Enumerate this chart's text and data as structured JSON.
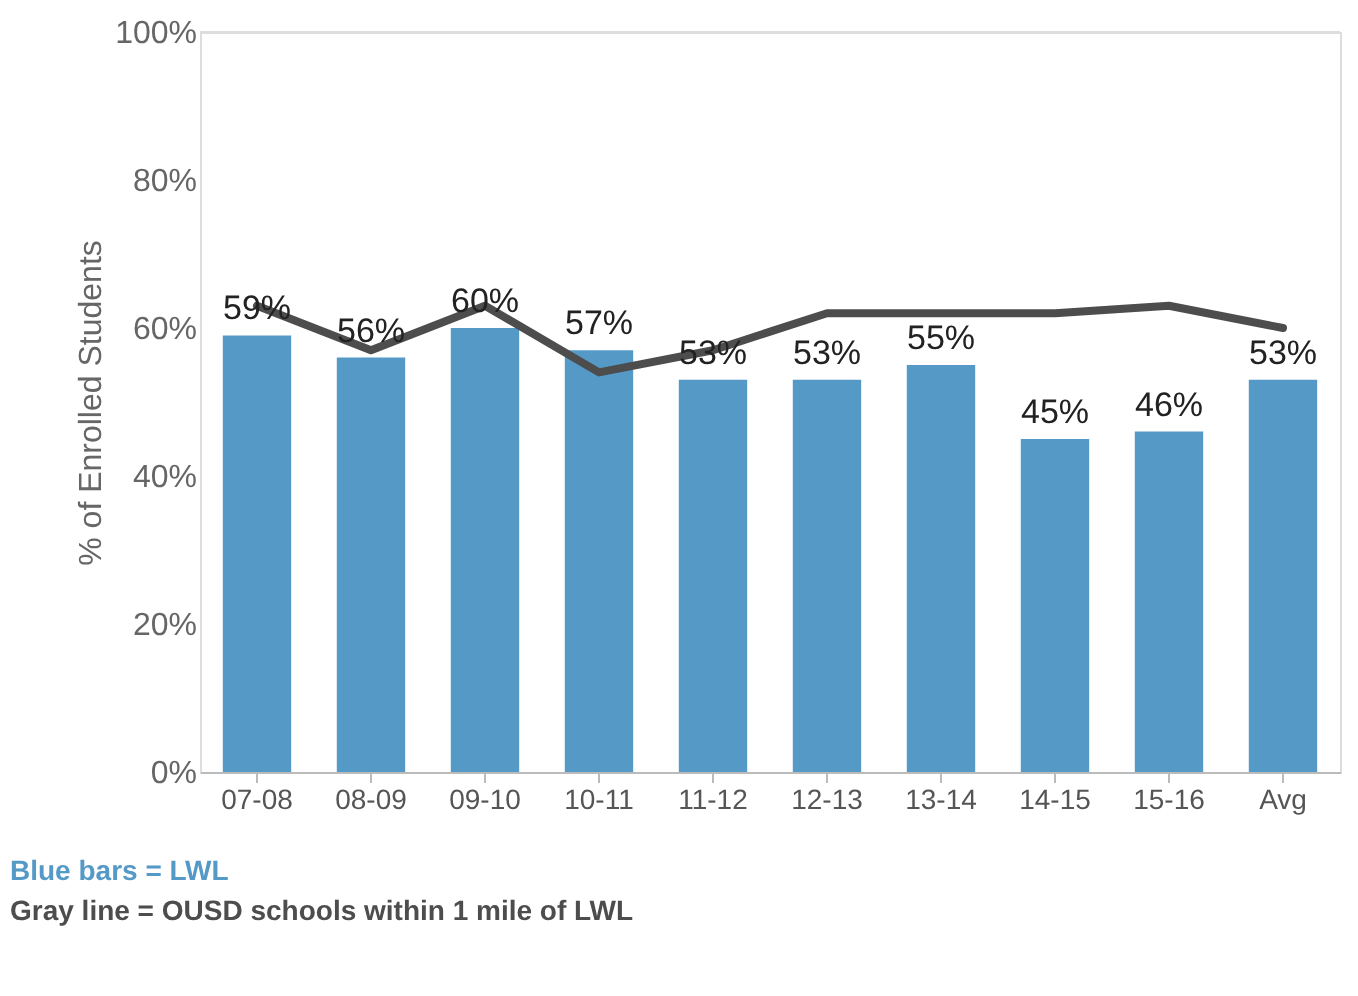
{
  "chart_data": {
    "type": "bar",
    "ylabel": "% of Enrolled Students",
    "categories": [
      "07-08",
      "08-09",
      "09-10",
      "10-11",
      "11-12",
      "12-13",
      "13-14",
      "14-15",
      "15-16",
      "Avg"
    ],
    "series": [
      {
        "color": "#5599c7",
        "values": [
          59,
          56,
          60,
          57,
          53,
          53,
          55,
          45,
          46,
          53
        ],
        "value_labels": [
          "59%",
          "56%",
          "60%",
          "57%",
          "53%",
          "53%",
          "55%",
          "45%",
          "46%",
          "53%"
        ]
      },
      {
        "type": "line",
        "color": "#4d4d4d",
        "values": [
          63,
          57,
          63,
          54,
          57,
          62,
          62,
          62,
          63,
          60
        ]
      }
    ],
    "ylim": [
      0,
      100
    ],
    "yticks": [
      {
        "value": 0,
        "label": "0%"
      },
      {
        "value": 20,
        "label": "20%"
      },
      {
        "value": 40,
        "label": "40%"
      },
      {
        "value": 60,
        "label": "60%"
      },
      {
        "value": 80,
        "label": "80%"
      },
      {
        "value": 100,
        "label": "100%"
      }
    ],
    "annotations": [
      "Blue bars = LWL",
      "Gray line = OUSD schools within 1 mile of LWL"
    ]
  }
}
